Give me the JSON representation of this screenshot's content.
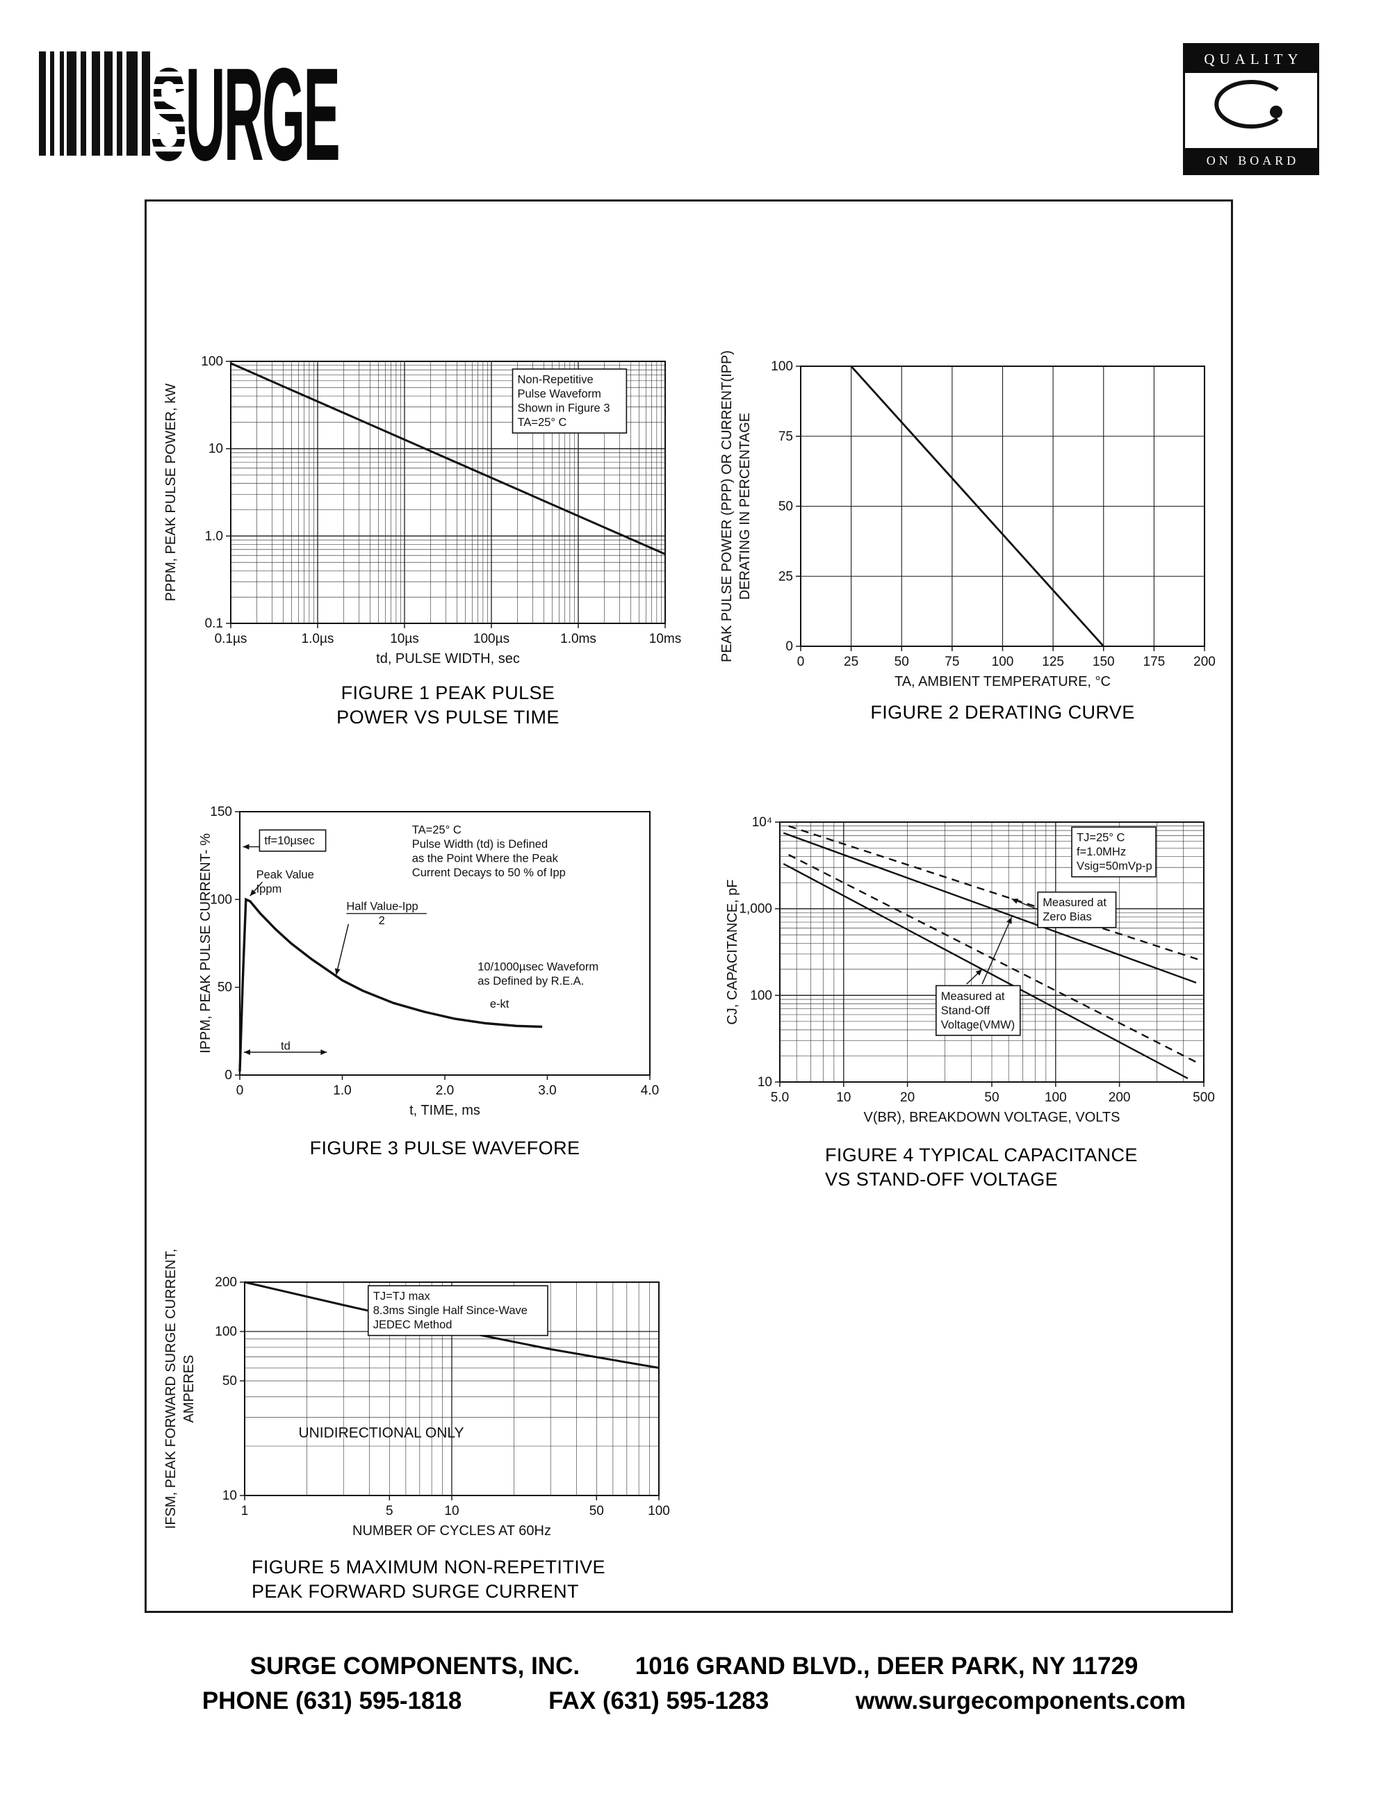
{
  "header": {
    "logo_s": "S",
    "logo_text": "URGE",
    "badge_top": "QUALITY",
    "badge_bottom": "ON BOARD"
  },
  "footer": {
    "company": "SURGE COMPONENTS, INC.",
    "address": "1016 GRAND BLVD., DEER PARK, NY  11729",
    "phone": "PHONE (631) 595-1818",
    "fax": "FAX (631) 595-1283",
    "website": "www.surgecomponents.com"
  },
  "chart_data": [
    {
      "id": "figure-1",
      "type": "line",
      "caption1": "FIGURE 1 PEAK PULSE",
      "caption2": "POWER VS PULSE TIME",
      "xlabel": "td, PULSE WIDTH, sec",
      "ylabel_lines": [
        "PPPM, PEAK PULSE POWER, kW"
      ],
      "xscale": "log",
      "yscale": "log",
      "xlim": [
        1e-07,
        0.01
      ],
      "ylim": [
        0.1,
        100
      ],
      "gridx": "log",
      "gridy": "log",
      "xticks": [
        {
          "v": 1e-07,
          "label": "0.1µs"
        },
        {
          "v": 1e-06,
          "label": "1.0µs"
        },
        {
          "v": 1e-05,
          "label": "10µs"
        },
        {
          "v": 0.0001,
          "label": "100µs"
        },
        {
          "v": 0.001,
          "label": "1.0ms"
        },
        {
          "v": 0.01,
          "label": "10ms"
        }
      ],
      "yticks": [
        {
          "v": 100,
          "label": "100"
        },
        {
          "v": 10,
          "label": "10"
        },
        {
          "v": 1,
          "label": "1.0"
        },
        {
          "v": 0.1,
          "label": "0.1"
        }
      ],
      "series": [
        {
          "name": "peak-pulse-power-line",
          "width": 3,
          "points": [
            [
              1e-07,
              95
            ],
            [
              0.01,
              0.62
            ]
          ]
        }
      ],
      "annotations": [
        {
          "lines": [
            "Non-Repetitive",
            "Pulse Waveform",
            "Shown in Figure 3",
            "TA=25° C"
          ],
          "fx": 0.66,
          "fy": 0.04,
          "boxed": true
        }
      ]
    },
    {
      "id": "figure-2",
      "type": "line",
      "caption1": "FIGURE 2 DERATING CURVE",
      "caption2": "",
      "xlabel": "TA, AMBIENT  TEMPERATURE, °C",
      "ylabel_lines": [
        "PEAK PULSE POWER (PPP) OR CURRENT(IPP)",
        "DERATING IN PERCENTAGE"
      ],
      "xscale": "linear",
      "yscale": "linear",
      "xlim": [
        0,
        200
      ],
      "ylim": [
        0,
        100
      ],
      "gridx": "step",
      "gridy": "step",
      "stepx": 25,
      "stepy": 25,
      "xticks": [
        {
          "v": 0,
          "label": "0"
        },
        {
          "v": 25,
          "label": "25"
        },
        {
          "v": 50,
          "label": "50"
        },
        {
          "v": 75,
          "label": "75"
        },
        {
          "v": 100,
          "label": "100"
        },
        {
          "v": 125,
          "label": "125"
        },
        {
          "v": 150,
          "label": "150"
        },
        {
          "v": 175,
          "label": "175"
        },
        {
          "v": 200,
          "label": "200"
        }
      ],
      "yticks": [
        {
          "v": 100,
          "label": "100"
        },
        {
          "v": 75,
          "label": "75"
        },
        {
          "v": 50,
          "label": "50"
        },
        {
          "v": 25,
          "label": "25"
        },
        {
          "v": 0,
          "label": "0"
        }
      ],
      "series": [
        {
          "name": "derating-line",
          "width": 2.8,
          "points": [
            [
              25,
              100
            ],
            [
              150,
              0
            ]
          ]
        }
      ],
      "annotations": []
    },
    {
      "id": "figure-3",
      "type": "line",
      "caption1": "FIGURE 3 PULSE WAVEFORE",
      "caption2": "",
      "xlabel": "t, TIME, ms",
      "ylabel_lines": [
        "IPPM, PEAK PULSE CURRENT- %"
      ],
      "xscale": "linear",
      "yscale": "linear",
      "xlim": [
        0,
        4
      ],
      "ylim": [
        0,
        150
      ],
      "gridx": "none",
      "gridy": "none",
      "xticks": [
        {
          "v": 0,
          "label": "0"
        },
        {
          "v": 1,
          "label": "1.0"
        },
        {
          "v": 2,
          "label": "2.0"
        },
        {
          "v": 3,
          "label": "3.0"
        },
        {
          "v": 4,
          "label": "4.0"
        }
      ],
      "yticks": [
        {
          "v": 150,
          "label": "150"
        },
        {
          "v": 100,
          "label": "100"
        },
        {
          "v": 50,
          "label": "50"
        },
        {
          "v": 0,
          "label": "0"
        }
      ],
      "series": [
        {
          "name": "pulse-waveform-curve",
          "width": 3.4,
          "points": [
            [
              0,
              2
            ],
            [
              0.03,
              55
            ],
            [
              0.06,
              100
            ],
            [
              0.1,
              99
            ],
            [
              0.2,
              92
            ],
            [
              0.35,
              83
            ],
            [
              0.5,
              75
            ],
            [
              0.7,
              66
            ],
            [
              0.9,
              58
            ],
            [
              1.0,
              54
            ],
            [
              1.2,
              48
            ],
            [
              1.5,
              41
            ],
            [
              1.8,
              36
            ],
            [
              2.1,
              32
            ],
            [
              2.4,
              29.5
            ],
            [
              2.7,
              28
            ],
            [
              2.95,
              27.5
            ]
          ]
        }
      ],
      "annotations": [
        {
          "lines": [
            "TA=25° C",
            "Pulse Width (td) is Defined",
            "as the Point Where the Peak",
            "Current Decays to 50 % of Ipp"
          ],
          "fx": 0.42,
          "fy": 0.04
        },
        {
          "lines": [
            "tf=10µsec"
          ],
          "fx": 0.06,
          "fy": 0.08,
          "boxed": true
        },
        {
          "lines": [
            "Peak Value",
            "Ippm"
          ],
          "fx": 0.04,
          "fy": 0.21
        },
        {
          "lines": [
            "Half Value-Ipp",
            "2"
          ],
          "fx": 0.26,
          "fy": 0.33,
          "fracbar": true
        },
        {
          "lines": [
            "10/1000µsec Waveform",
            "as Defined by R.E.A."
          ],
          "fx": 0.58,
          "fy": 0.56
        },
        {
          "lines": [
            "e-kt"
          ],
          "fx": 0.61,
          "fy": 0.7
        },
        {
          "lines": [
            "td"
          ],
          "fx": 0.1,
          "fy": 0.86
        }
      ],
      "extra_lines": [
        {
          "x1": 0.03,
          "y1": 130,
          "x2": 0.72,
          "y2": 130,
          "arrows": true
        },
        {
          "x1": 0.22,
          "y1": 110,
          "x2": 0.1,
          "y2": 102,
          "arrow_end": true
        },
        {
          "x1": 1.06,
          "y1": 86,
          "x2": 0.94,
          "y2": 57,
          "arrow_end": true
        },
        {
          "x1": 0.04,
          "y1": 13,
          "x2": 0.85,
          "y2": 13,
          "arrows": true
        }
      ]
    },
    {
      "id": "figure-4",
      "type": "line",
      "caption1": "FIGURE 4 TYPICAL CAPACITANCE",
      "caption2": "VS STAND-OFF VOLTAGE",
      "xlabel": "V(BR), BREAKDOWN VOLTAGE, VOLTS",
      "ylabel_lines": [
        "CJ, CAPACITANCE, pF"
      ],
      "xscale": "log",
      "yscale": "log",
      "xlim": [
        5,
        500
      ],
      "ylim": [
        10,
        10000
      ],
      "gridx": "log",
      "gridy": "log",
      "xticks": [
        {
          "v": 5,
          "label": "5.0"
        },
        {
          "v": 10,
          "label": "10"
        },
        {
          "v": 20,
          "label": "20"
        },
        {
          "v": 50,
          "label": "50"
        },
        {
          "v": 100,
          "label": "100"
        },
        {
          "v": 200,
          "label": "200"
        },
        {
          "v": 500,
          "label": "500"
        }
      ],
      "yticks": [
        {
          "v": 10000,
          "label": "10⁴"
        },
        {
          "v": 1000,
          "label": "1,000"
        },
        {
          "v": 100,
          "label": "100"
        },
        {
          "v": 10,
          "label": "10"
        }
      ],
      "series": [
        {
          "name": "capacitance-zero-bias-upper",
          "width": 2.4,
          "dash": true,
          "points": [
            [
              5.5,
              9000
            ],
            [
              470,
              260
            ]
          ]
        },
        {
          "name": "capacitance-zero-bias-lower",
          "width": 2.4,
          "dash": true,
          "points": [
            [
              5.5,
              4200
            ],
            [
              460,
              17
            ]
          ]
        },
        {
          "name": "capacitance-standoff-upper",
          "width": 2.4,
          "points": [
            [
              5.2,
              7500
            ],
            [
              460,
              140
            ]
          ]
        },
        {
          "name": "capacitance-standoff-lower",
          "width": 2.4,
          "points": [
            [
              5.2,
              3300
            ],
            [
              420,
              11
            ]
          ]
        }
      ],
      "annotations": [
        {
          "lines": [
            "TJ=25° C",
            "f=1.0MHz",
            "Vsig=50mVp-p"
          ],
          "fx": 0.7,
          "fy": 0.03,
          "boxed": true
        },
        {
          "lines": [
            "Measured at",
            "Zero Bias"
          ],
          "fx": 0.62,
          "fy": 0.28,
          "boxed": true
        },
        {
          "lines": [
            "Measured at",
            "Stand-Off",
            "Voltage(VMW)"
          ],
          "fx": 0.38,
          "fy": 0.64,
          "boxed": true
        }
      ],
      "extra_lines": [
        {
          "x1": 85,
          "y1": 950,
          "x2": 62,
          "y2": 1300,
          "arrow_end": true
        },
        {
          "x1": 38,
          "y1": 135,
          "x2": 45,
          "y2": 200,
          "arrow_end": true
        },
        {
          "x1": 45,
          "y1": 135,
          "x2": 62,
          "y2": 800,
          "arrow_end": true
        }
      ]
    },
    {
      "id": "figure-5",
      "type": "line",
      "caption1": "FIGURE 5 MAXIMUM NON-REPETITIVE",
      "caption2": "PEAK FORWARD SURGE CURRENT",
      "xlabel": "NUMBER OF CYCLES AT 60Hz",
      "ylabel_lines": [
        "IFSM, PEAK FORWARD SURGE CURRENT,",
        "AMPERES"
      ],
      "xscale": "log",
      "yscale": "log",
      "xlim": [
        1,
        100
      ],
      "ylim": [
        10,
        200
      ],
      "gridx": "log",
      "gridy": "log",
      "xticks": [
        {
          "v": 1,
          "label": "1"
        },
        {
          "v": 5,
          "label": "5"
        },
        {
          "v": 10,
          "label": "10"
        },
        {
          "v": 50,
          "label": "50"
        },
        {
          "v": 100,
          "label": "100"
        }
      ],
      "yticks": [
        {
          "v": 200,
          "label": "200"
        },
        {
          "v": 100,
          "label": "100"
        },
        {
          "v": 50,
          "label": "50"
        },
        {
          "v": 10,
          "label": "10"
        }
      ],
      "series": [
        {
          "name": "surge-current-line",
          "width": 3,
          "points": [
            [
              1,
              200
            ],
            [
              3,
              145
            ],
            [
              10,
              103
            ],
            [
              30,
              78
            ],
            [
              100,
              60
            ]
          ]
        }
      ],
      "annotations": [
        {
          "lines": [
            "TJ=TJ max",
            "8.3ms Single Half Since-Wave",
            "JEDEC Method"
          ],
          "fx": 0.31,
          "fy": 0.03,
          "boxed": true
        },
        {
          "lines": [
            "UNIDIRECTIONAL ONLY"
          ],
          "fx": 0.13,
          "fy": 0.66,
          "size": 21
        }
      ]
    }
  ]
}
